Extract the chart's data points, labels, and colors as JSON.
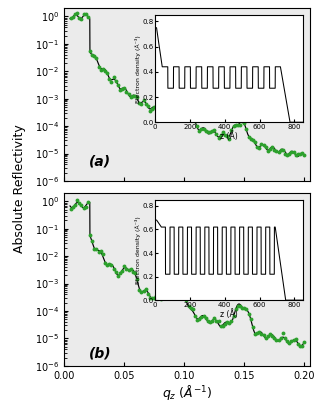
{
  "title": "",
  "xlabel": "q_z (A^-1)",
  "ylabel": "Absolute Reflectivity",
  "panel_a_label": "(a)",
  "panel_b_label": "(b)",
  "inset_xlabel": "z (Å)",
  "inset_ylabel": "Electron density (Å⁻³)",
  "xlim": [
    0.0,
    0.205
  ],
  "ylim_a": [
    1e-06,
    2.0
  ],
  "ylim_b": [
    1e-06,
    2.0
  ],
  "line_color": "#000000",
  "dot_color": "#2ca02c",
  "bg_color": "#ebebeb",
  "panel_bg": "#ffffff"
}
